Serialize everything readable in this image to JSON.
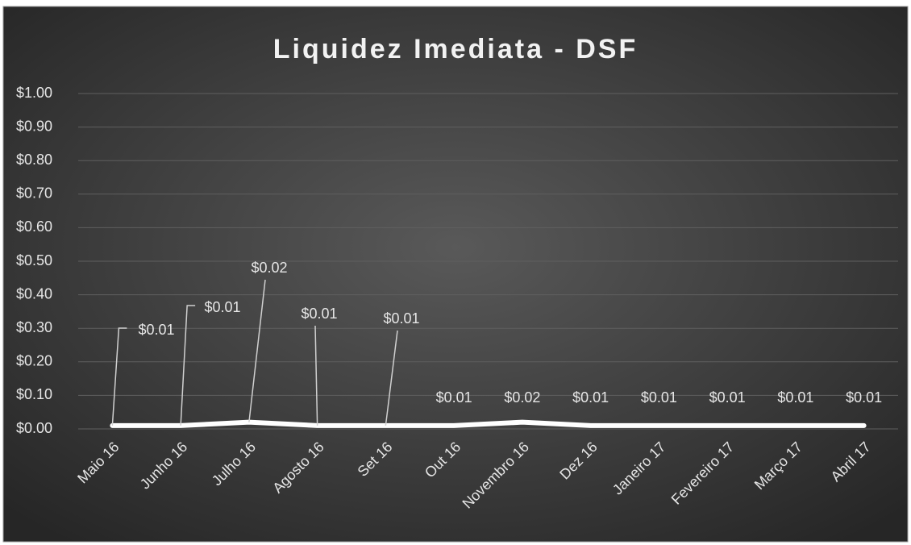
{
  "chart_data": {
    "type": "line",
    "title": "Liquidez Imediata - DSF",
    "categories": [
      "Maio 16",
      "Junho 16",
      "Julho 16",
      "Agosto 16",
      "Set 16",
      "Out 16",
      "Novembro 16",
      "Dez 16",
      "Janeiro 17",
      "Fevereiro 17",
      "Março 17",
      "Abril 17"
    ],
    "series": [
      {
        "name": "Liquidez Imediata",
        "color": "#ffffff",
        "values": [
          0.01,
          0.01,
          0.02,
          0.01,
          0.01,
          0.01,
          0.02,
          0.01,
          0.01,
          0.01,
          0.01,
          0.01
        ],
        "value_labels": [
          "$0.01",
          "$0.01",
          "$0.02",
          "$0.01",
          "$0.01",
          "$0.01",
          "$0.02",
          "$0.01",
          "$0.01",
          "$0.01",
          "$0.01",
          "$0.01"
        ]
      }
    ],
    "ylim": [
      0,
      1
    ],
    "yticks": [
      {
        "value": 0,
        "label": "$0.00"
      },
      {
        "value": 0.1,
        "label": "$0.10"
      },
      {
        "value": 0.2,
        "label": "$0.20"
      },
      {
        "value": 0.3,
        "label": "$0.30"
      },
      {
        "value": 0.4,
        "label": "$0.40"
      },
      {
        "value": 0.5,
        "label": "$0.50"
      },
      {
        "value": 0.6,
        "label": "$0.60"
      },
      {
        "value": 0.7,
        "label": "$0.70"
      },
      {
        "value": 0.8,
        "label": "$0.80"
      },
      {
        "value": 0.9,
        "label": "$0.90"
      },
      {
        "value": 1,
        "label": "$1.00"
      }
    ],
    "grid": true
  }
}
